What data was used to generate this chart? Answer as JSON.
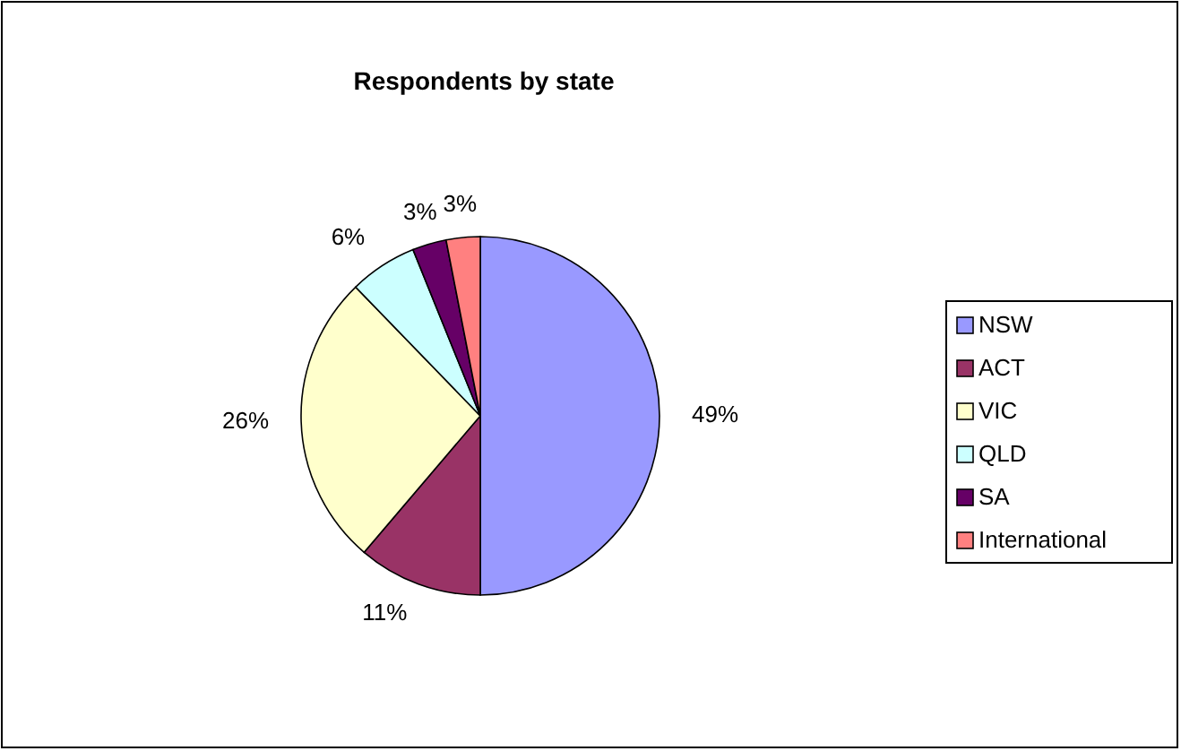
{
  "chart_data": {
    "type": "pie",
    "title": "Respondents by state",
    "categories": [
      "NSW",
      "ACT",
      "VIC",
      "QLD",
      "SA",
      "International"
    ],
    "values": [
      49,
      11,
      26,
      6,
      3,
      3
    ],
    "value_labels": [
      "49%",
      "11%",
      "26%",
      "6%",
      "3%",
      "3%"
    ],
    "colors": [
      "#9999ff",
      "#993366",
      "#ffffcc",
      "#ccffff",
      "#660066",
      "#ff8080"
    ],
    "legend": "right"
  }
}
